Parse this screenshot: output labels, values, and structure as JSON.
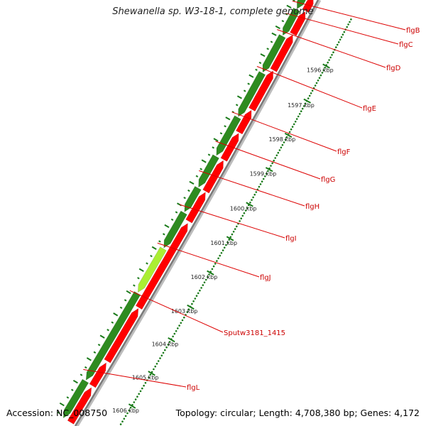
{
  "title": "Shewanella sp. W3-18-1, complete genome",
  "footer": {
    "accession": "Accession: NC_008750",
    "summary": "Topology: circular; Length: 4,708,380 bp; Genes: 4,172"
  },
  "colors": {
    "forward_cds": "#ff0000",
    "reverse_cds": "#2e8b20",
    "highlight_cds": "#aaee33",
    "backbone": "#888888",
    "tick": "#1a7a1a",
    "label_line": "#dd0000"
  },
  "ticks": [
    "1596 kbp",
    "1597 kbp",
    "1598 kbp",
    "1599 kbp",
    "1600 kbp",
    "1601 kbp",
    "1602 kbp",
    "1603 kbp",
    "1604 kbp",
    "1605 kbp",
    "1606 kbp"
  ],
  "genes": [
    "flgB",
    "flgC",
    "flgD",
    "flgE",
    "flgF",
    "flgG",
    "flgH",
    "flgI",
    "flgJ",
    "Sputw3181_1415",
    "flgL"
  ]
}
